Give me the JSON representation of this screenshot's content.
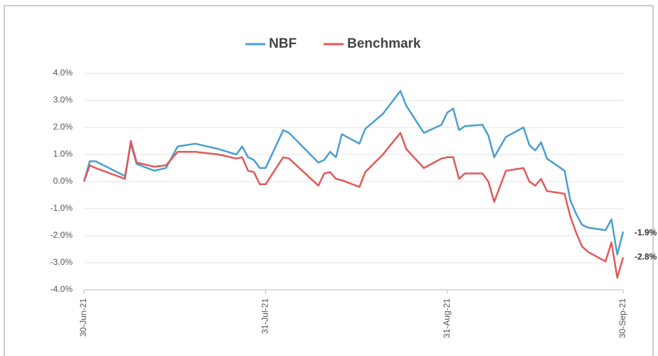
{
  "chart_data": {
    "type": "line",
    "x": [
      "2021-06-30",
      "2021-07-01",
      "2021-07-02",
      "2021-07-07",
      "2021-07-08",
      "2021-07-09",
      "2021-07-12",
      "2021-07-14",
      "2021-07-16",
      "2021-07-19",
      "2021-07-23",
      "2021-07-26",
      "2021-07-27",
      "2021-07-28",
      "2021-07-29",
      "2021-07-30",
      "2021-07-31",
      "2021-08-03",
      "2021-08-04",
      "2021-08-09",
      "2021-08-10",
      "2021-08-11",
      "2021-08-12",
      "2021-08-13",
      "2021-08-16",
      "2021-08-17",
      "2021-08-20",
      "2021-08-23",
      "2021-08-24",
      "2021-08-27",
      "2021-08-30",
      "2021-08-31",
      "2021-09-01",
      "2021-09-02",
      "2021-09-03",
      "2021-09-06",
      "2021-09-07",
      "2021-09-08",
      "2021-09-10",
      "2021-09-13",
      "2021-09-14",
      "2021-09-15",
      "2021-09-16",
      "2021-09-17",
      "2021-09-20",
      "2021-09-21",
      "2021-09-22",
      "2021-09-23",
      "2021-09-24",
      "2021-09-27",
      "2021-09-28",
      "2021-09-29",
      "2021-09-30"
    ],
    "series": [
      {
        "name": "NBF",
        "color": "#4a9fcf",
        "values": [
          0,
          0.75,
          0.75,
          0.2,
          1.4,
          0.65,
          0.4,
          0.5,
          1.3,
          1.4,
          1.2,
          1.0,
          1.3,
          0.9,
          0.8,
          0.5,
          0.5,
          1.9,
          1.8,
          0.7,
          0.8,
          1.1,
          0.9,
          1.75,
          1.4,
          1.95,
          2.5,
          3.35,
          2.8,
          1.8,
          2.1,
          2.55,
          2.7,
          1.9,
          2.05,
          2.1,
          1.7,
          0.9,
          1.65,
          2.0,
          1.35,
          1.15,
          1.45,
          0.85,
          0.4,
          -0.7,
          -1.2,
          -1.6,
          -1.7,
          -1.8,
          -1.4,
          -2.7,
          -1.85
        ]
      },
      {
        "name": "Benchmark",
        "color": "#e05a57",
        "values": [
          0,
          0.6,
          0.5,
          0.1,
          1.5,
          0.7,
          0.55,
          0.6,
          1.1,
          1.1,
          1.0,
          0.85,
          0.9,
          0.4,
          0.35,
          -0.1,
          -0.1,
          0.9,
          0.85,
          -0.15,
          0.3,
          0.35,
          0.1,
          0.05,
          -0.2,
          0.35,
          1.0,
          1.8,
          1.2,
          0.5,
          0.85,
          0.9,
          0.9,
          0.1,
          0.3,
          0.3,
          0.0,
          -0.75,
          0.4,
          0.5,
          0.0,
          -0.15,
          0.1,
          -0.35,
          -0.45,
          -1.3,
          -1.9,
          -2.4,
          -2.6,
          -2.95,
          -2.25,
          -3.55,
          -2.8
        ]
      }
    ],
    "annotations": [
      {
        "text": "-1.9%",
        "value": -1.9
      },
      {
        "text": "-2.8%",
        "value": -2.8
      }
    ],
    "xlim": [
      "2021-06-30",
      "2021-09-30"
    ],
    "xticks": [
      {
        "value": "2021-06-30",
        "label": "30-Jun-21"
      },
      {
        "value": "2021-07-31",
        "label": "31-Jul-21"
      },
      {
        "value": "2021-08-31",
        "label": "31-Aug-21"
      },
      {
        "value": "2021-09-30",
        "label": "30-Sep-21"
      }
    ],
    "ylim": [
      -4,
      4
    ],
    "yticks": [
      {
        "value": 4,
        "label": "4.0%"
      },
      {
        "value": 3,
        "label": "3.0%"
      },
      {
        "value": 2,
        "label": "2.0%"
      },
      {
        "value": 1,
        "label": "1.0%"
      },
      {
        "value": 0,
        "label": "0.0%"
      },
      {
        "value": -1,
        "label": "-1.0%"
      },
      {
        "value": -2,
        "label": "-2.0%"
      },
      {
        "value": -3,
        "label": "-3.0%"
      },
      {
        "value": -4,
        "label": "-4.0%"
      }
    ],
    "grid": true
  }
}
